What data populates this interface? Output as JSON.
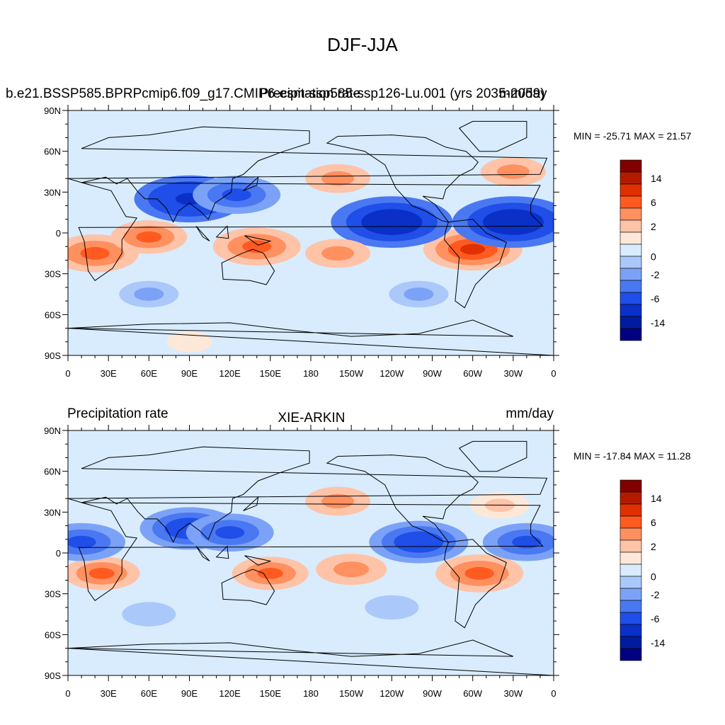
{
  "figure": {
    "title": "DJF-JJA"
  },
  "panels": [
    {
      "left_label": "b.e21.BSSP585.BPRPcmip6.f09_g17.CMIP6-esm-ssp585-ssp126-Lu.001 (yrs 2035-2059)",
      "overlay_left": "Precipitation rate",
      "center_label": "",
      "right_label": "mm/day",
      "stats": "MIN = -25.71 MAX =  21.57"
    },
    {
      "left_label": "Precipitation rate",
      "center_label": "XIE-ARKIN",
      "right_label": "mm/day",
      "stats": "MIN = -17.84 MAX =  11.28"
    }
  ],
  "axes": {
    "x_ticks": [
      "0",
      "30E",
      "60E",
      "90E",
      "120E",
      "150E",
      "180",
      "150W",
      "120W",
      "90W",
      "60W",
      "30W",
      "0"
    ],
    "y_ticks": [
      "90N",
      "60N",
      "30N",
      "0",
      "30S",
      "60S",
      "90S"
    ]
  },
  "colorbar": {
    "labels": [
      "14",
      "6",
      "2",
      "0",
      "-2",
      "-6",
      "-14"
    ],
    "colors": [
      "#800000",
      "#b31b00",
      "#e03000",
      "#ff5a20",
      "#ff9060",
      "#ffc3a8",
      "#fde8d8",
      "#d8ecfd",
      "#aac8fa",
      "#7ba2f6",
      "#4a78f2",
      "#1f4ee8",
      "#0a30c8",
      "#001c9e",
      "#000080"
    ]
  },
  "chart_data": [
    {
      "type": "heatmap",
      "title": "DJF-JJA",
      "units": "mm/day",
      "min": -25.71,
      "max": 21.57,
      "levels": [
        -14,
        -6,
        -2,
        0,
        2,
        6,
        14
      ],
      "regions": [
        {
          "lon": 20,
          "lat": -15,
          "value": 8
        },
        {
          "lon": 60,
          "lat": -3,
          "value": 6
        },
        {
          "lon": 140,
          "lat": -10,
          "value": 8
        },
        {
          "lon": -60,
          "lat": -12,
          "value": 10
        },
        {
          "lon": 90,
          "lat": 25,
          "value": -12
        },
        {
          "lon": 125,
          "lat": 28,
          "value": -8
        },
        {
          "lon": -120,
          "lat": 8,
          "value": -14
        },
        {
          "lon": -30,
          "lat": 8,
          "value": -14
        },
        {
          "lon": -160,
          "lat": 40,
          "value": 4
        },
        {
          "lon": -30,
          "lat": 45,
          "value": 4
        },
        {
          "lon": -160,
          "lat": -15,
          "value": 4
        },
        {
          "lon": -100,
          "lat": -45,
          "value": -3
        },
        {
          "lon": 60,
          "lat": -45,
          "value": -3
        },
        {
          "lon": 90,
          "lat": -80,
          "value": 0.5
        }
      ]
    },
    {
      "type": "heatmap",
      "title": "XIE-ARKIN",
      "units": "mm/day",
      "min": -17.84,
      "max": 11.28,
      "levels": [
        -14,
        -6,
        -2,
        0,
        2,
        6,
        14
      ],
      "regions": [
        {
          "lon": 25,
          "lat": -15,
          "value": 6
        },
        {
          "lon": 150,
          "lat": -15,
          "value": 6
        },
        {
          "lon": -150,
          "lat": -12,
          "value": 5
        },
        {
          "lon": -55,
          "lat": -15,
          "value": 8
        },
        {
          "lon": 90,
          "lat": 18,
          "value": -10
        },
        {
          "lon": 120,
          "lat": 15,
          "value": -8
        },
        {
          "lon": 10,
          "lat": 8,
          "value": -8
        },
        {
          "lon": -100,
          "lat": 8,
          "value": -10
        },
        {
          "lon": -20,
          "lat": 8,
          "value": -8
        },
        {
          "lon": -160,
          "lat": 38,
          "value": 4
        },
        {
          "lon": -40,
          "lat": 35,
          "value": 3
        },
        {
          "lon": -120,
          "lat": -40,
          "value": -2
        },
        {
          "lon": 60,
          "lat": -45,
          "value": -2
        }
      ]
    }
  ]
}
